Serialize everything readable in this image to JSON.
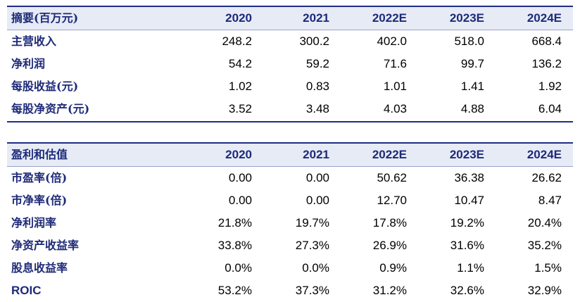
{
  "summary": {
    "title": "摘要(百万元)",
    "years": [
      "2020",
      "2021",
      "2022E",
      "2023E",
      "2024E"
    ],
    "rows": [
      {
        "label": "主营收入",
        "values": [
          "248.2",
          "300.2",
          "402.0",
          "518.0",
          "668.4"
        ]
      },
      {
        "label": "净利润",
        "values": [
          "54.2",
          "59.2",
          "71.6",
          "99.7",
          "136.2"
        ]
      },
      {
        "label": "每股收益(元)",
        "values": [
          "1.02",
          "0.83",
          "1.01",
          "1.41",
          "1.92"
        ]
      },
      {
        "label": "每股净资产(元)",
        "values": [
          "3.52",
          "3.48",
          "4.03",
          "4.88",
          "6.04"
        ]
      }
    ]
  },
  "valuation": {
    "title": "盈利和估值",
    "years": [
      "2020",
      "2021",
      "2022E",
      "2023E",
      "2024E"
    ],
    "rows": [
      {
        "label": "市盈率(倍)",
        "values": [
          "0.00",
          "0.00",
          "50.62",
          "36.38",
          "26.62"
        ]
      },
      {
        "label": "市净率(倍)",
        "values": [
          "0.00",
          "0.00",
          "12.70",
          "10.47",
          "8.47"
        ]
      },
      {
        "label": "净利润率",
        "values": [
          "21.8%",
          "19.7%",
          "17.8%",
          "19.2%",
          "20.4%"
        ]
      },
      {
        "label": "净资产收益率",
        "values": [
          "33.8%",
          "27.3%",
          "26.9%",
          "31.6%",
          "35.2%"
        ]
      },
      {
        "label": "股息收益率",
        "values": [
          "0.0%",
          "0.0%",
          "0.9%",
          "1.1%",
          "1.5%"
        ]
      },
      {
        "label": "ROIC",
        "values": [
          "53.2%",
          "37.3%",
          "31.2%",
          "32.6%",
          "32.9%"
        ]
      }
    ]
  },
  "colors": {
    "header_bg": "#e6ebf6",
    "label_text": "#1e2a78",
    "rule": "#1f2d86"
  }
}
